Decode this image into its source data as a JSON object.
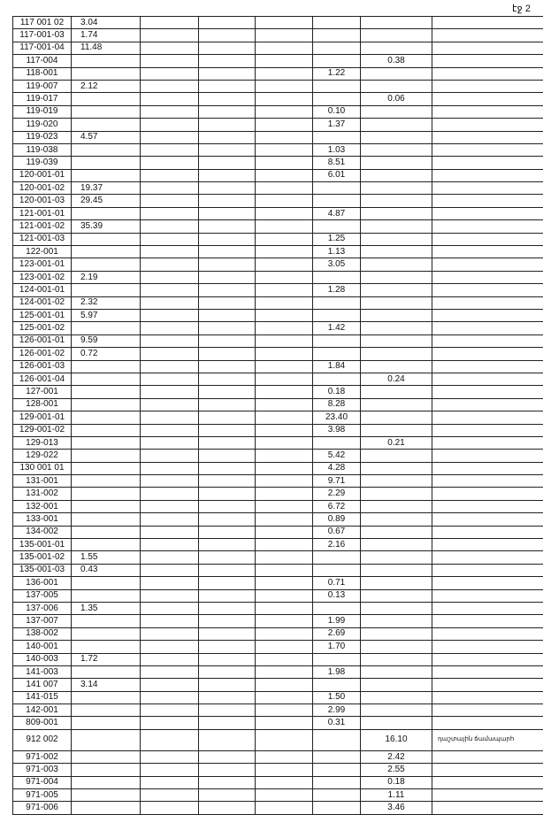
{
  "header": {
    "page": "էջ 2"
  },
  "table": {
    "rows": [
      [
        "117 001 02",
        "3.04",
        null,
        null,
        null,
        null,
        null,
        null
      ],
      [
        "117-001-03",
        "1.74",
        null,
        null,
        null,
        null,
        null,
        null
      ],
      [
        "117-001-04",
        "11.48",
        null,
        null,
        null,
        null,
        null,
        null
      ],
      [
        "117-004",
        null,
        null,
        null,
        null,
        null,
        "0.38",
        null
      ],
      [
        "118-001",
        null,
        null,
        null,
        null,
        "1.22",
        null,
        null
      ],
      [
        "119-007",
        "2.12",
        null,
        null,
        null,
        null,
        null,
        null
      ],
      [
        "119-017",
        null,
        null,
        null,
        null,
        null,
        "0.06",
        null
      ],
      [
        "119-019",
        null,
        null,
        null,
        null,
        "0.10",
        null,
        null
      ],
      [
        "119-020",
        null,
        null,
        null,
        null,
        "1.37",
        null,
        null
      ],
      [
        "119-023",
        "4.57",
        null,
        null,
        null,
        null,
        null,
        null
      ],
      [
        "119-038",
        null,
        null,
        null,
        null,
        "1.03",
        null,
        null
      ],
      [
        "119-039",
        null,
        null,
        null,
        null,
        "8.51",
        null,
        null
      ],
      [
        "120-001-01",
        null,
        null,
        null,
        null,
        "6.01",
        null,
        null
      ],
      [
        "120-001-02",
        "19.37",
        null,
        null,
        null,
        null,
        null,
        null
      ],
      [
        "120-001-03",
        "29.45",
        null,
        null,
        null,
        null,
        null,
        null
      ],
      [
        "121-001-01",
        null,
        null,
        null,
        null,
        "4.87",
        null,
        null
      ],
      [
        "121-001-02",
        "35.39",
        null,
        null,
        null,
        null,
        null,
        null
      ],
      [
        "121-001-03",
        null,
        null,
        null,
        null,
        "1.25",
        null,
        null
      ],
      [
        "122-001",
        null,
        null,
        null,
        null,
        "1.13",
        null,
        null
      ],
      [
        "123-001-01",
        null,
        null,
        null,
        null,
        "3.05",
        null,
        null
      ],
      [
        "123-001-02",
        "2.19",
        null,
        null,
        null,
        null,
        null,
        null
      ],
      [
        "124-001-01",
        null,
        null,
        null,
        null,
        "1.28",
        null,
        null
      ],
      [
        "124-001-02",
        "2.32",
        null,
        null,
        null,
        null,
        null,
        null
      ],
      [
        "125-001-01",
        "5.97",
        null,
        null,
        null,
        null,
        null,
        null
      ],
      [
        "125-001-02",
        null,
        null,
        null,
        null,
        "1.42",
        null,
        null
      ],
      [
        "126-001-01",
        "9.59",
        null,
        null,
        null,
        null,
        null,
        null
      ],
      [
        "126-001-02",
        "0.72",
        null,
        null,
        null,
        null,
        null,
        null
      ],
      [
        "126-001-03",
        null,
        null,
        null,
        null,
        "1.84",
        null,
        null
      ],
      [
        "126-001-04",
        null,
        null,
        null,
        null,
        null,
        "0.24",
        null
      ],
      [
        "127-001",
        null,
        null,
        null,
        null,
        "0.18",
        null,
        null
      ],
      [
        "128-001",
        null,
        null,
        null,
        null,
        "8.28",
        null,
        null
      ],
      [
        "129-001-01",
        null,
        null,
        null,
        null,
        "23.40",
        null,
        null
      ],
      [
        "129-001-02",
        null,
        null,
        null,
        null,
        "3.98",
        null,
        null
      ],
      [
        "129-013",
        null,
        null,
        null,
        null,
        null,
        "0.21",
        null
      ],
      [
        "129-022",
        null,
        null,
        null,
        null,
        "5.42",
        null,
        null
      ],
      [
        "130 001 01",
        null,
        null,
        null,
        null,
        "4.28",
        null,
        null
      ],
      [
        "131-001",
        null,
        null,
        null,
        null,
        "9.71",
        null,
        null
      ],
      [
        "131-002",
        null,
        null,
        null,
        null,
        "2.29",
        null,
        null
      ],
      [
        "132-001",
        null,
        null,
        null,
        null,
        "6.72",
        null,
        null
      ],
      [
        "133-001",
        null,
        null,
        null,
        null,
        "0.89",
        null,
        null
      ],
      [
        "134-002",
        null,
        null,
        null,
        null,
        "0.67",
        null,
        null
      ],
      [
        "135-001-01",
        null,
        null,
        null,
        null,
        "2.16",
        null,
        null
      ],
      [
        "135-001-02",
        "1.55",
        null,
        null,
        null,
        null,
        null,
        null
      ],
      [
        "135-001-03",
        "0.43",
        null,
        null,
        null,
        null,
        null,
        null
      ],
      [
        "136-001",
        null,
        null,
        null,
        null,
        "0.71",
        null,
        null
      ],
      [
        "137-005",
        null,
        null,
        null,
        null,
        "0.13",
        null,
        null
      ],
      [
        "137-006",
        "1.35",
        null,
        null,
        null,
        null,
        null,
        null
      ],
      [
        "137-007",
        null,
        null,
        null,
        null,
        "1.99",
        null,
        null
      ],
      [
        "138-002",
        null,
        null,
        null,
        null,
        "2.69",
        null,
        null
      ],
      [
        "140-001",
        null,
        null,
        null,
        null,
        "1.70",
        null,
        null
      ],
      [
        "140-003",
        "1.72",
        null,
        null,
        null,
        null,
        null,
        null
      ],
      [
        "141-003",
        null,
        null,
        null,
        null,
        "1.98",
        null,
        null
      ],
      [
        "141 007",
        "3.14",
        null,
        null,
        null,
        null,
        null,
        null
      ],
      [
        "141-015",
        null,
        null,
        null,
        null,
        "1.50",
        null,
        null
      ],
      [
        "142-001",
        null,
        null,
        null,
        null,
        "2.99",
        null,
        null
      ],
      [
        "809-001",
        null,
        null,
        null,
        null,
        "0.31",
        null,
        null
      ],
      [
        "912 002",
        null,
        null,
        null,
        null,
        null,
        "16.10",
        "դաշտային ճամապարհ"
      ],
      [
        "971-002",
        null,
        null,
        null,
        null,
        null,
        "2.42",
        null
      ],
      [
        "971-003",
        null,
        null,
        null,
        null,
        null,
        "2.55",
        null
      ],
      [
        "971-004",
        null,
        null,
        null,
        null,
        null,
        "0.18",
        null
      ],
      [
        "971-005",
        null,
        null,
        null,
        null,
        null,
        "1.11",
        null
      ],
      [
        "971-006",
        null,
        null,
        null,
        null,
        null,
        "3.46",
        null
      ]
    ]
  }
}
